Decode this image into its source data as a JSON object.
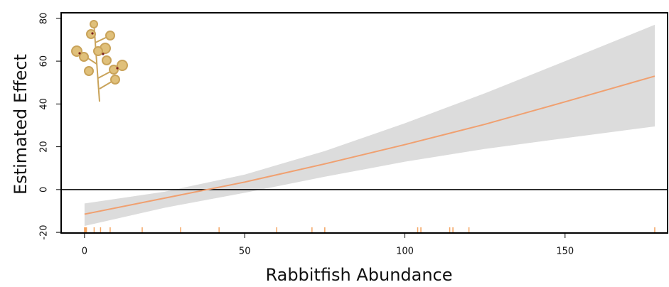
{
  "chart_data": {
    "type": "line",
    "x_label": "Rabbitfish Abundance",
    "y_label": "Estimated Effect",
    "x": [
      0,
      25,
      50,
      75,
      100,
      125,
      150,
      178
    ],
    "series": [
      {
        "color": "#f0a070",
        "values": [
          -11.5,
          -4,
          3.5,
          12,
          21,
          30.5,
          41,
          53
        ]
      }
    ],
    "band": {
      "color": "#dcdcdc",
      "upper": [
        -6.5,
        -1,
        7,
        18,
        31,
        45,
        60,
        77
      ],
      "lower": [
        -17,
        -8.5,
        -1.5,
        6,
        13,
        19,
        24,
        29.5
      ]
    },
    "hline": 0,
    "rug": {
      "color": "#f4a460",
      "values": [
        0,
        0.3,
        0.6,
        3,
        5,
        8,
        18,
        30,
        42,
        60,
        71,
        75,
        104,
        105,
        114,
        115,
        120,
        178
      ]
    },
    "xlim": [
      -7.3,
      182
    ],
    "ylim": [
      -20.3,
      82.6
    ],
    "xticks": [
      0,
      50,
      100,
      150
    ],
    "yticks": [
      -20,
      0,
      20,
      40,
      60,
      80
    ]
  }
}
